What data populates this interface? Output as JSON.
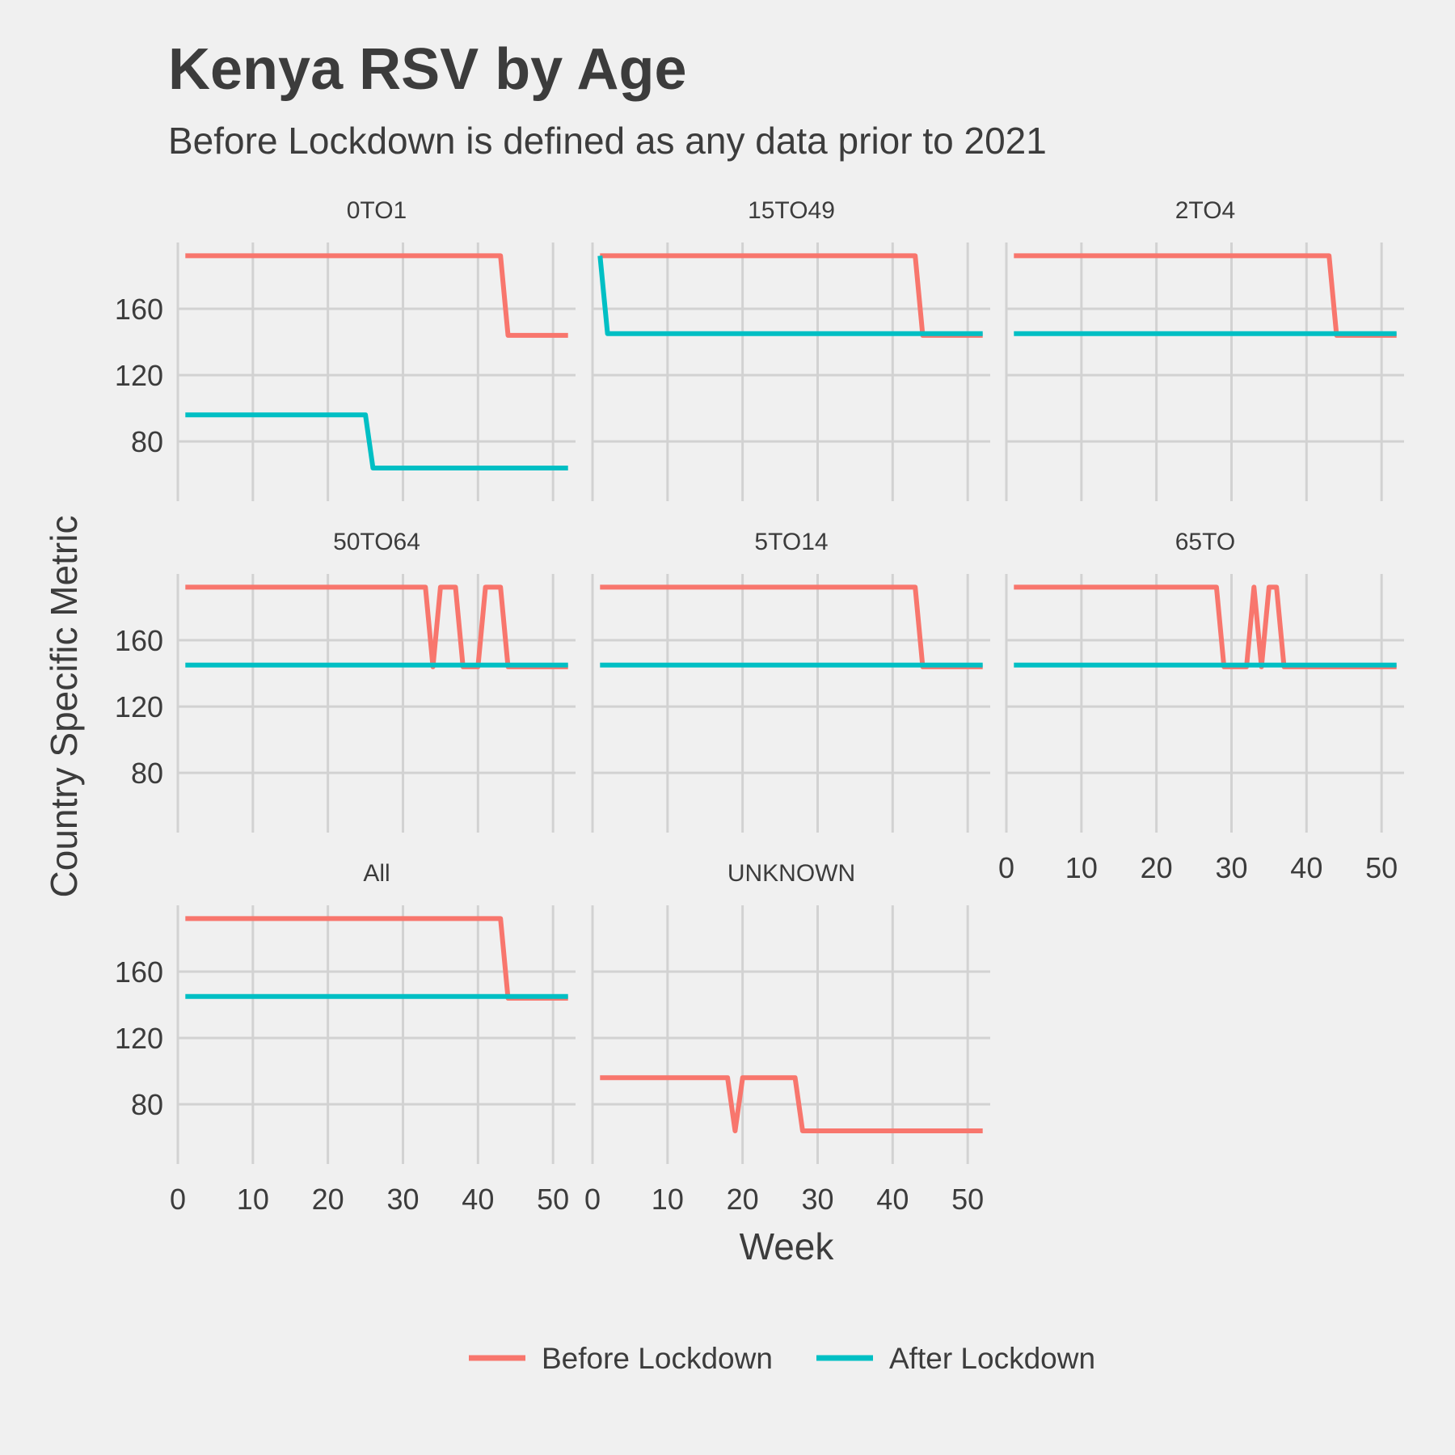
{
  "chart_data": {
    "type": "line",
    "title": "Kenya RSV by Age",
    "subtitle": "Before Lockdown is defined as any data prior to 2021",
    "xlabel": "Week",
    "ylabel": "Country Specific Metric",
    "xlim": [
      0,
      53
    ],
    "ylim": [
      44,
      200
    ],
    "xticks": [
      0,
      10,
      20,
      30,
      40,
      50
    ],
    "yticks": [
      80,
      120,
      160
    ],
    "grid": true,
    "legend_position": "bottom",
    "series_meta": [
      {
        "name": "Before Lockdown",
        "color": "#f8766d"
      },
      {
        "name": "After Lockdown",
        "color": "#00bfc4"
      }
    ],
    "panels": [
      {
        "label": "0TO1",
        "series": [
          {
            "name": "Before Lockdown",
            "x": [
              1,
              43,
              44,
              52
            ],
            "y": [
              192,
              192,
              144,
              144
            ]
          },
          {
            "name": "After Lockdown",
            "x": [
              1,
              25,
              26,
              52
            ],
            "y": [
              96,
              96,
              64,
              64
            ]
          }
        ]
      },
      {
        "label": "15TO49",
        "series": [
          {
            "name": "Before Lockdown",
            "x": [
              1,
              43,
              44,
              52
            ],
            "y": [
              192,
              192,
              144,
              144
            ]
          },
          {
            "name": "After Lockdown",
            "x": [
              1,
              2,
              52
            ],
            "y": [
              192,
              145,
              145
            ]
          }
        ]
      },
      {
        "label": "2TO4",
        "series": [
          {
            "name": "Before Lockdown",
            "x": [
              1,
              43,
              44,
              52
            ],
            "y": [
              192,
              192,
              144,
              144
            ]
          },
          {
            "name": "After Lockdown",
            "x": [
              1,
              52
            ],
            "y": [
              145,
              145
            ]
          }
        ]
      },
      {
        "label": "50TO64",
        "series": [
          {
            "name": "Before Lockdown",
            "x": [
              1,
              33,
              34,
              35,
              37,
              38,
              40,
              41,
              43,
              44,
              52
            ],
            "y": [
              192,
              192,
              144,
              192,
              192,
              144,
              144,
              192,
              192,
              144,
              144
            ]
          },
          {
            "name": "After Lockdown",
            "x": [
              1,
              52
            ],
            "y": [
              145,
              145
            ]
          }
        ]
      },
      {
        "label": "5TO14",
        "series": [
          {
            "name": "Before Lockdown",
            "x": [
              1,
              43,
              44,
              52
            ],
            "y": [
              192,
              192,
              144,
              144
            ]
          },
          {
            "name": "After Lockdown",
            "x": [
              1,
              52
            ],
            "y": [
              145,
              145
            ]
          }
        ]
      },
      {
        "label": "65TO",
        "series": [
          {
            "name": "Before Lockdown",
            "x": [
              1,
              28,
              29,
              32,
              33,
              34,
              35,
              36,
              37,
              52
            ],
            "y": [
              192,
              192,
              144,
              144,
              192,
              144,
              192,
              192,
              144,
              144
            ]
          },
          {
            "name": "After Lockdown",
            "x": [
              1,
              52
            ],
            "y": [
              145,
              145
            ]
          }
        ]
      },
      {
        "label": "All",
        "series": [
          {
            "name": "Before Lockdown",
            "x": [
              1,
              43,
              44,
              52
            ],
            "y": [
              192,
              192,
              144,
              144
            ]
          },
          {
            "name": "After Lockdown",
            "x": [
              1,
              52
            ],
            "y": [
              145,
              145
            ]
          }
        ]
      },
      {
        "label": "UNKNOWN",
        "series": [
          {
            "name": "Before Lockdown",
            "x": [
              1,
              18,
              19,
              20,
              27,
              28,
              52
            ],
            "y": [
              96,
              96,
              64,
              96,
              96,
              64,
              64
            ]
          }
        ]
      }
    ]
  }
}
